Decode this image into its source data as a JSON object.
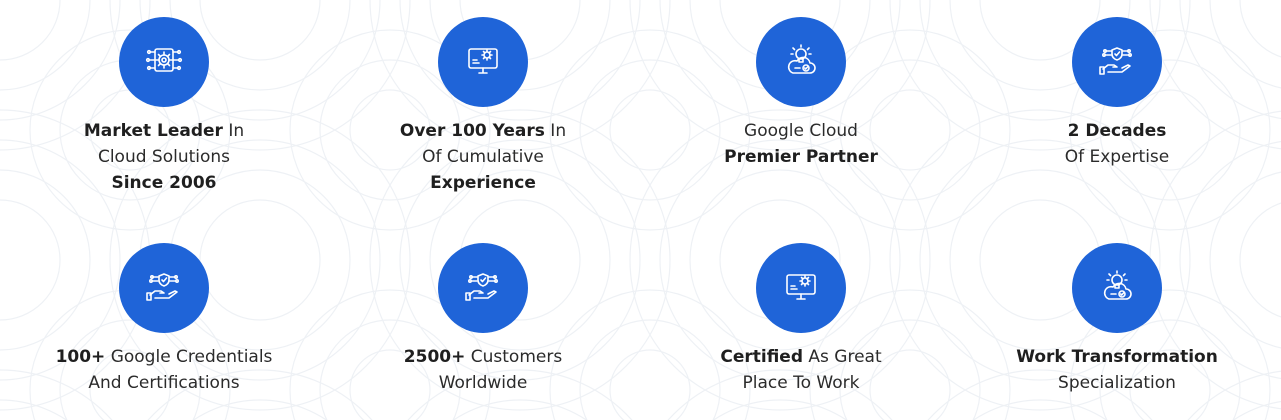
{
  "accent_color": "#1f64d8",
  "stats": [
    {
      "icon": "circuit-gear-icon",
      "lines": [
        {
          "bold": "Market Leader",
          "normal": " In"
        },
        {
          "bold": "",
          "normal": "Cloud Solutions"
        },
        {
          "bold": "Since 2006",
          "normal": ""
        }
      ]
    },
    {
      "icon": "monitor-gear-icon",
      "lines": [
        {
          "bold": "Over 100 Years",
          "normal": " In"
        },
        {
          "bold": "",
          "normal": "Of Cumulative"
        },
        {
          "bold": "Experience",
          "normal": ""
        }
      ]
    },
    {
      "icon": "cloud-lightbulb-icon",
      "lines": [
        {
          "bold": "",
          "normal": "Google Cloud"
        },
        {
          "bold": "Premier Partner",
          "normal": ""
        }
      ]
    },
    {
      "icon": "hand-shield-network-icon",
      "lines": [
        {
          "bold": "2 Decades",
          "normal": ""
        },
        {
          "bold": "",
          "normal": "Of Expertise"
        }
      ]
    },
    {
      "icon": "hand-shield-network-icon",
      "lines": [
        {
          "bold": "100+",
          "normal": " Google Credentials"
        },
        {
          "bold": "",
          "normal": "And Certifications"
        }
      ]
    },
    {
      "icon": "hand-shield-network-icon",
      "lines": [
        {
          "bold": "2500+",
          "normal": " Customers"
        },
        {
          "bold": "",
          "normal": "Worldwide"
        }
      ]
    },
    {
      "icon": "monitor-gear-icon",
      "lines": [
        {
          "bold": "Certified",
          "normal": " As Great"
        },
        {
          "bold": "",
          "normal": "Place To Work"
        }
      ]
    },
    {
      "icon": "cloud-lightbulb-icon",
      "lines": [
        {
          "bold": "Work Transformation",
          "normal": ""
        },
        {
          "bold": "",
          "normal": "Specialization"
        }
      ]
    }
  ]
}
